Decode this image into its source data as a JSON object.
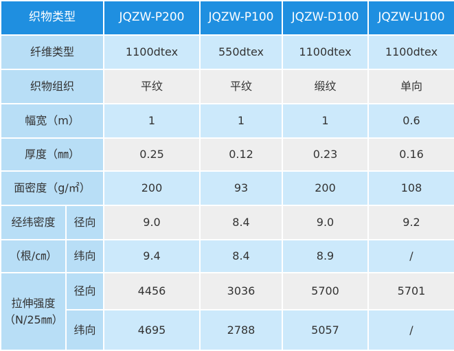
{
  "table": {
    "header": [
      "织物类型",
      "JQZW-P200",
      "JQZW-P100",
      "JQZW-D100",
      "JQZW-U100"
    ],
    "rows": [
      [
        "纤维类型",
        "1100dtex",
        "550dtex",
        "1100dtex",
        "1100dtex"
      ],
      [
        "织物组织",
        "平纹",
        "平纹",
        "缎纹",
        "单向"
      ],
      [
        "幅宽（m）",
        "1",
        "1",
        "1",
        "0.6"
      ],
      [
        "厚度（㎜）",
        "0.25",
        "0.12",
        "0.23",
        "0.16"
      ],
      [
        "面密度（g/㎡）",
        "200",
        "93",
        "200",
        "108"
      ],
      [
        "经纬密度",
        "径向",
        "9.0",
        "8.4",
        "9.0",
        "9.2"
      ],
      [
        "（根/㎝）",
        "纬向",
        "9.4",
        "8.4",
        "8.9",
        "/"
      ],
      [
        "拉伸强度（N/25㎜）",
        "径向",
        "4456",
        "3036",
        "5700",
        "5701"
      ],
      [
        "纬向",
        "4695",
        "2788",
        "5057",
        "/"
      ]
    ]
  }
}
